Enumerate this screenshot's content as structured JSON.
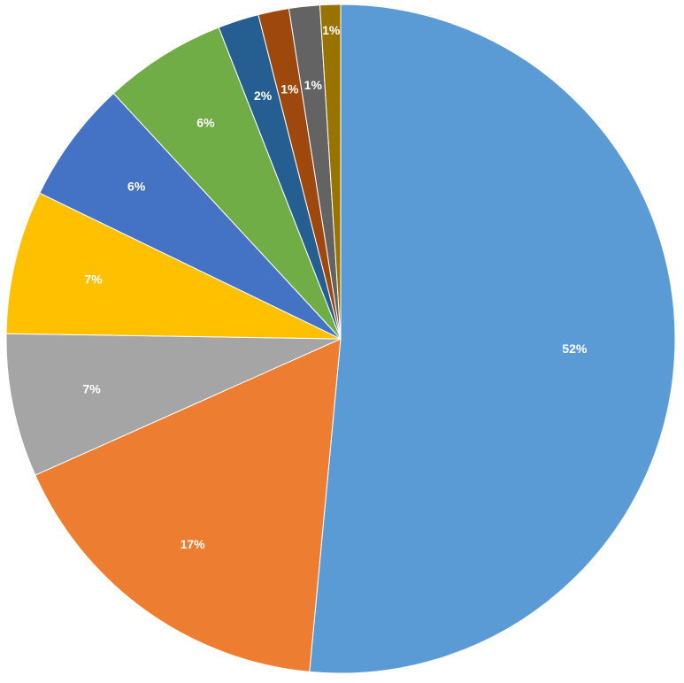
{
  "chart_data": {
    "type": "pie",
    "start_angle_deg": 0,
    "direction": "clockwise",
    "legend": "none",
    "slices": [
      {
        "value": 52,
        "label": "52%",
        "color": "#5b9bd5"
      },
      {
        "value": 17,
        "label": "17%",
        "color": "#ed7d31"
      },
      {
        "value": 7,
        "label": "7%",
        "color": "#a5a5a5"
      },
      {
        "value": 7,
        "label": "7%",
        "color": "#ffc000"
      },
      {
        "value": 6,
        "label": "6%",
        "color": "#4472c4"
      },
      {
        "value": 6,
        "label": "6%",
        "color": "#70ad47"
      },
      {
        "value": 2,
        "label": "2%",
        "color": "#255e91"
      },
      {
        "value": 1.5,
        "label": "1%",
        "color": "#9e480e"
      },
      {
        "value": 1.5,
        "label": "1%",
        "color": "#636363"
      },
      {
        "value": 1,
        "label": "1%",
        "color": "#997300"
      }
    ]
  }
}
